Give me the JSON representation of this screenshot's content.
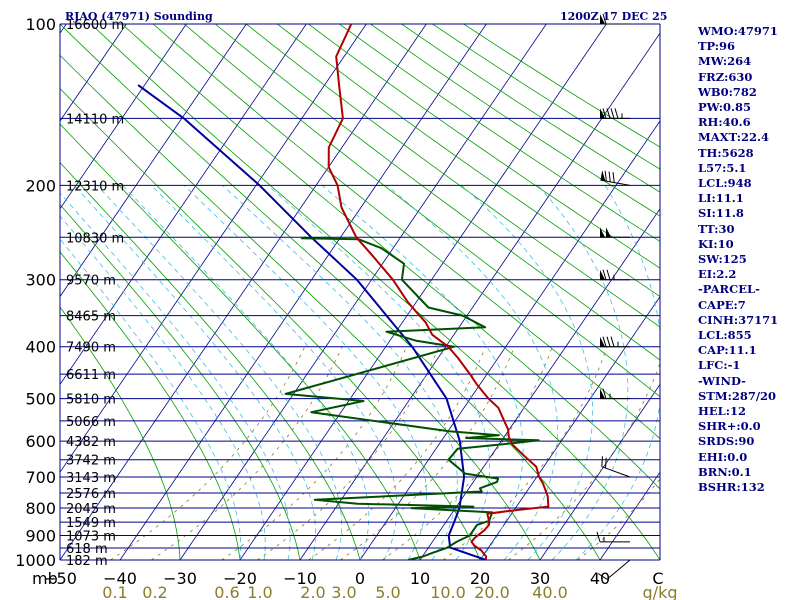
{
  "header": {
    "station": "RJAO (47971) Sounding",
    "time": "1200Z 17 DEC 25"
  },
  "indices": [
    "WMO:47971",
    "TP:96",
    "MW:264",
    "FRZ:630",
    "WB0:782",
    "PW:0.85",
    "RH:40.6",
    "MAXT:22.4",
    "TH:5628",
    "L57:5.1",
    "LCL:948",
    "LI:11.1",
    "SI:11.8",
    "TT:30",
    "KI:10",
    "SW:125",
    "EI:2.2",
    "-PARCEL-",
    "CAPE:7",
    "CINH:37171",
    "LCL:855",
    "CAP:11.1",
    "LFC:-1",
    "-WIND-",
    "STM:287/20",
    "HEL:12",
    "SHR+:0.0",
    "SRDS:90",
    "EHI:0.0",
    "BRN:0.1",
    "BSHR:132"
  ],
  "colors": {
    "isobar": "#00008b",
    "isotherm": "#00008b",
    "dry_adiabat": "#00a000",
    "moist_adiabat": "#40c0e0",
    "mixing_ratio": "#8b7d2a",
    "temperature": "#b00000",
    "dewpoint": "#005000",
    "parcel": "#0000a0",
    "wind_barb": "#000000",
    "text": "#000080"
  },
  "chart_data": {
    "type": "skew-t",
    "x_label": "mb",
    "ylim": [
      1000,
      100
    ],
    "xlim": [
      -50,
      50
    ],
    "pressure_labels": [
      {
        "p": 100,
        "label": "100",
        "height": "16600 m"
      },
      {
        "p": 150,
        "label": "",
        "height": "14110 m"
      },
      {
        "p": 200,
        "label": "200",
        "height": "12310 m"
      },
      {
        "p": 250,
        "label": "",
        "height": "10830 m"
      },
      {
        "p": 300,
        "label": "300",
        "height": "9570 m"
      },
      {
        "p": 350,
        "label": "",
        "height": "8465 m"
      },
      {
        "p": 400,
        "label": "400",
        "height": "7490 m"
      },
      {
        "p": 450,
        "label": "",
        "height": "6611 m"
      },
      {
        "p": 500,
        "label": "500",
        "height": "5810 m"
      },
      {
        "p": 550,
        "label": "",
        "height": "5066 m"
      },
      {
        "p": 600,
        "label": "600",
        "height": "4382 m"
      },
      {
        "p": 650,
        "label": "",
        "height": "3742 m"
      },
      {
        "p": 700,
        "label": "700",
        "height": "3143 m"
      },
      {
        "p": 750,
        "label": "",
        "height": "2576 m"
      },
      {
        "p": 800,
        "label": "800",
        "height": "2045 m"
      },
      {
        "p": 850,
        "label": "",
        "height": "1549 m"
      },
      {
        "p": 900,
        "label": "900",
        "height": "1073 m"
      },
      {
        "p": 950,
        "label": "",
        "height": "618 m"
      },
      {
        "p": 1000,
        "label": "1000",
        "height": "182 m"
      }
    ],
    "temp_ticks": [
      -50,
      -40,
      -30,
      -20,
      -10,
      0,
      10,
      20,
      30,
      40
    ],
    "mixing_ratio_labels": [
      "0.1",
      "0.2",
      "0.6",
      "1.0",
      "2.0",
      "3.0",
      "5.0",
      "10.0",
      "20.0",
      "40.0"
    ],
    "mixing_ratio_unit": "g/kg",
    "temperature": [
      [
        1000,
        21.0
      ],
      [
        985,
        20.0
      ],
      [
        960,
        17.5
      ],
      [
        940,
        15.0
      ],
      [
        925,
        13.5
      ],
      [
        910,
        13.0
      ],
      [
        880,
        12.6
      ],
      [
        860,
        12.0
      ],
      [
        850,
        11.4
      ],
      [
        820,
        9.0
      ],
      [
        810,
        12.0
      ],
      [
        795,
        17.5
      ],
      [
        760,
        15.0
      ],
      [
        720,
        11.5
      ],
      [
        700,
        9.5
      ],
      [
        670,
        7.0
      ],
      [
        640,
        3.0
      ],
      [
        610,
        -1.0
      ],
      [
        590,
        -3.0
      ],
      [
        570,
        -4.5
      ],
      [
        550,
        -6.5
      ],
      [
        520,
        -9.5
      ],
      [
        500,
        -12.5
      ],
      [
        470,
        -16.5
      ],
      [
        450,
        -19.0
      ],
      [
        420,
        -23.0
      ],
      [
        400,
        -26.0
      ],
      [
        380,
        -30.0
      ],
      [
        360,
        -32.5
      ],
      [
        345,
        -35.0
      ],
      [
        330,
        -37.5
      ],
      [
        300,
        -42.0
      ],
      [
        270,
        -47.5
      ],
      [
        250,
        -51.5
      ],
      [
        220,
        -56.0
      ],
      [
        200,
        -58.0
      ],
      [
        185,
        -60.5
      ],
      [
        170,
        -61.5
      ],
      [
        150,
        -60.5
      ],
      [
        130,
        -62.5
      ],
      [
        115,
        -64.0
      ],
      [
        100,
        -62.5
      ]
    ],
    "dewpoint": [
      [
        1000,
        8.0
      ],
      [
        985,
        9.5
      ],
      [
        970,
        10.0
      ],
      [
        950,
        11.0
      ],
      [
        925,
        11.0
      ],
      [
        900,
        11.5
      ],
      [
        860,
        10.0
      ],
      [
        845,
        11.0
      ],
      [
        815,
        9.5
      ],
      [
        800,
        -5.0
      ],
      [
        795,
        5.0
      ],
      [
        785,
        -15.0
      ],
      [
        772,
        -23.0
      ],
      [
        745,
        3.0
      ],
      [
        735,
        2.0
      ],
      [
        715,
        3.5
      ],
      [
        705,
        3.0
      ],
      [
        690,
        -3.5
      ],
      [
        650,
        -9.0
      ],
      [
        620,
        -9.5
      ],
      [
        605,
        -1.0
      ],
      [
        598,
        2.5
      ],
      [
        592,
        -10.0
      ],
      [
        585,
        -5.0
      ],
      [
        575,
        -14.0
      ],
      [
        530,
        -40.0
      ],
      [
        505,
        -33.0
      ],
      [
        490,
        -47.0
      ],
      [
        400,
        -25.0
      ],
      [
        390,
        -32.0
      ],
      [
        375,
        -38.0
      ],
      [
        368,
        -22.0
      ],
      [
        350,
        -27.0
      ],
      [
        338,
        -33.5
      ],
      [
        300,
        -40.5
      ],
      [
        280,
        -41.5
      ],
      [
        262,
        -46.5
      ],
      [
        252,
        -51.0
      ],
      [
        251,
        -60.5
      ],
      [
        250,
        -60.0
      ]
    ],
    "parcel": [
      [
        1000,
        21.0
      ],
      [
        948,
        11.5
      ],
      [
        900,
        8.0
      ],
      [
        850,
        5.5
      ],
      [
        800,
        3.0
      ],
      [
        700,
        -3.0
      ],
      [
        600,
        -10.5
      ],
      [
        500,
        -19.5
      ],
      [
        400,
        -32.0
      ],
      [
        300,
        -48.0
      ],
      [
        250,
        -59.0
      ],
      [
        200,
        -71.0
      ],
      [
        150,
        -87.0
      ],
      [
        130,
        -96.0
      ]
    ],
    "winds": [
      {
        "p": 1000,
        "dir": 230,
        "spd": 10
      },
      {
        "p": 925,
        "dir": 270,
        "spd": 15
      },
      {
        "p": 700,
        "dir": 290,
        "spd": 20
      },
      {
        "p": 500,
        "dir": 270,
        "spd": 65
      },
      {
        "p": 400,
        "dir": 270,
        "spd": 85
      },
      {
        "p": 300,
        "dir": 270,
        "spd": 75
      },
      {
        "p": 250,
        "dir": 270,
        "spd": 100
      },
      {
        "p": 200,
        "dir": 280,
        "spd": 80
      },
      {
        "p": 150,
        "dir": 270,
        "spd": 95
      },
      {
        "p": 100,
        "dir": 270,
        "spd": 60
      }
    ]
  }
}
